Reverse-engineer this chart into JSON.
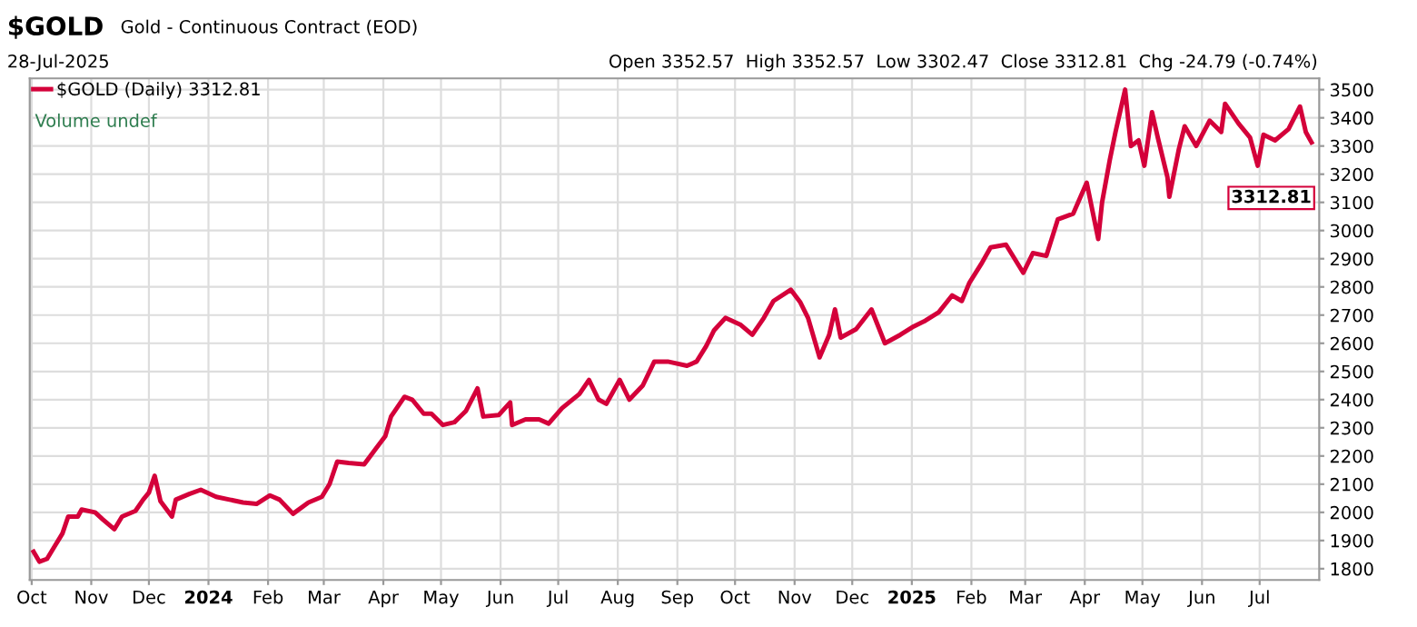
{
  "chart_data": {
    "type": "line",
    "title": "$GOLD",
    "subtitle": "Gold - Continuous Contract (EOD)",
    "annotations": [
      "28-Jul-2025",
      "Open 3352.57  High 3352.57  Low 3302.47  Close 3312.81  Chg -24.79 (-0.74%)",
      "Volume undef",
      {
        "text": "3312.81",
        "x": "2025-07-28",
        "y": 3312.81
      }
    ],
    "x": [
      "2023-10-02",
      "2023-10-05",
      "2023-10-09",
      "2023-10-13",
      "2023-10-17",
      "2023-10-20",
      "2023-10-25",
      "2023-10-27",
      "2023-11-03",
      "2023-11-07",
      "2023-11-13",
      "2023-11-17",
      "2023-11-24",
      "2023-11-28",
      "2023-12-01",
      "2023-12-04",
      "2023-12-07",
      "2023-12-13",
      "2023-12-15",
      "2023-12-22",
      "2023-12-28",
      "2024-01-05",
      "2024-01-12",
      "2024-01-19",
      "2024-01-26",
      "2024-02-02",
      "2024-02-07",
      "2024-02-14",
      "2024-02-22",
      "2024-02-29",
      "2024-03-04",
      "2024-03-08",
      "2024-03-14",
      "2024-03-22",
      "2024-03-28",
      "2024-04-02",
      "2024-04-05",
      "2024-04-12",
      "2024-04-16",
      "2024-04-22",
      "2024-04-26",
      "2024-05-02",
      "2024-05-08",
      "2024-05-14",
      "2024-05-20",
      "2024-05-23",
      "2024-05-31",
      "2024-06-06",
      "2024-06-07",
      "2024-06-14",
      "2024-06-21",
      "2024-06-26",
      "2024-07-03",
      "2024-07-12",
      "2024-07-17",
      "2024-07-22",
      "2024-07-26",
      "2024-08-02",
      "2024-08-07",
      "2024-08-14",
      "2024-08-20",
      "2024-08-27",
      "2024-09-06",
      "2024-09-11",
      "2024-09-16",
      "2024-09-20",
      "2024-09-26",
      "2024-10-04",
      "2024-10-10",
      "2024-10-16",
      "2024-10-21",
      "2024-10-30",
      "2024-11-04",
      "2024-11-08",
      "2024-11-14",
      "2024-11-19",
      "2024-11-22",
      "2024-11-25",
      "2024-12-03",
      "2024-12-11",
      "2024-12-18",
      "2024-12-26",
      "2025-01-02",
      "2025-01-08",
      "2025-01-15",
      "2025-01-22",
      "2025-01-27",
      "2025-01-31",
      "2025-02-06",
      "2025-02-11",
      "2025-02-19",
      "2025-02-28",
      "2025-03-05",
      "2025-03-12",
      "2025-03-18",
      "2025-03-26",
      "2025-04-02",
      "2025-04-08",
      "2025-04-10",
      "2025-04-14",
      "2025-04-17",
      "2025-04-22",
      "2025-04-25",
      "2025-04-29",
      "2025-05-02",
      "2025-05-06",
      "2025-05-09",
      "2025-05-14",
      "2025-05-15",
      "2025-05-20",
      "2025-05-23",
      "2025-05-29",
      "2025-06-05",
      "2025-06-11",
      "2025-06-13",
      "2025-06-20",
      "2025-06-26",
      "2025-06-30",
      "2025-07-03",
      "2025-07-09",
      "2025-07-16",
      "2025-07-22",
      "2025-07-25",
      "2025-07-28"
    ],
    "series": [
      {
        "name": "$GOLD (Daily) 3312.81",
        "color": "#d4003a",
        "values": [
          1860,
          1825,
          1835,
          1880,
          1925,
          1985,
          1985,
          2010,
          2000,
          1975,
          1940,
          1985,
          2005,
          2045,
          2070,
          2130,
          2040,
          1985,
          2045,
          2065,
          2080,
          2055,
          2045,
          2035,
          2030,
          2060,
          2045,
          1995,
          2035,
          2055,
          2100,
          2180,
          2175,
          2170,
          2225,
          2270,
          2340,
          2410,
          2400,
          2350,
          2350,
          2310,
          2320,
          2360,
          2440,
          2340,
          2345,
          2390,
          2310,
          2330,
          2330,
          2315,
          2370,
          2420,
          2470,
          2400,
          2385,
          2470,
          2400,
          2450,
          2535,
          2535,
          2520,
          2535,
          2590,
          2645,
          2690,
          2665,
          2630,
          2690,
          2750,
          2790,
          2745,
          2690,
          2550,
          2630,
          2720,
          2620,
          2650,
          2720,
          2600,
          2630,
          2660,
          2680,
          2710,
          2770,
          2750,
          2815,
          2880,
          2940,
          2950,
          2850,
          2920,
          2910,
          3040,
          3060,
          3170,
          2970,
          3100,
          3250,
          3350,
          3500,
          3300,
          3320,
          3230,
          3420,
          3330,
          3190,
          3120,
          3290,
          3370,
          3300,
          3390,
          3350,
          3450,
          3380,
          3330,
          3230,
          3340,
          3320,
          3360,
          3440,
          3350,
          3312.81
        ]
      }
    ],
    "xlim": [
      "2023-09-30",
      "2025-08-01"
    ],
    "xticks": [
      {
        "value": "2023-10-01",
        "label": "Oct"
      },
      {
        "value": "2023-11-01",
        "label": "Nov"
      },
      {
        "value": "2023-12-01",
        "label": "Dec"
      },
      {
        "value": "2024-01-01",
        "label": "2024"
      },
      {
        "value": "2024-02-01",
        "label": "Feb"
      },
      {
        "value": "2024-03-01",
        "label": "Mar"
      },
      {
        "value": "2024-04-01",
        "label": "Apr"
      },
      {
        "value": "2024-05-01",
        "label": "May"
      },
      {
        "value": "2024-06-01",
        "label": "Jun"
      },
      {
        "value": "2024-07-01",
        "label": "Jul"
      },
      {
        "value": "2024-08-01",
        "label": "Aug"
      },
      {
        "value": "2024-09-01",
        "label": "Sep"
      },
      {
        "value": "2024-10-01",
        "label": "Oct"
      },
      {
        "value": "2024-11-01",
        "label": "Nov"
      },
      {
        "value": "2024-12-01",
        "label": "Dec"
      },
      {
        "value": "2025-01-01",
        "label": "2025"
      },
      {
        "value": "2025-02-01",
        "label": "Feb"
      },
      {
        "value": "2025-03-01",
        "label": "Mar"
      },
      {
        "value": "2025-04-01",
        "label": "Apr"
      },
      {
        "value": "2025-05-01",
        "label": "May"
      },
      {
        "value": "2025-06-01",
        "label": "Jun"
      },
      {
        "value": "2025-07-01",
        "label": "Jul"
      }
    ],
    "ylim": [
      1760,
      3540
    ],
    "yticks": [
      1800,
      1900,
      2000,
      2100,
      2200,
      2300,
      2400,
      2500,
      2600,
      2700,
      2800,
      2900,
      3000,
      3100,
      3200,
      3300,
      3400,
      3500
    ],
    "grid": true,
    "legend": "top left",
    "marker": "none",
    "line_style": "solid"
  }
}
